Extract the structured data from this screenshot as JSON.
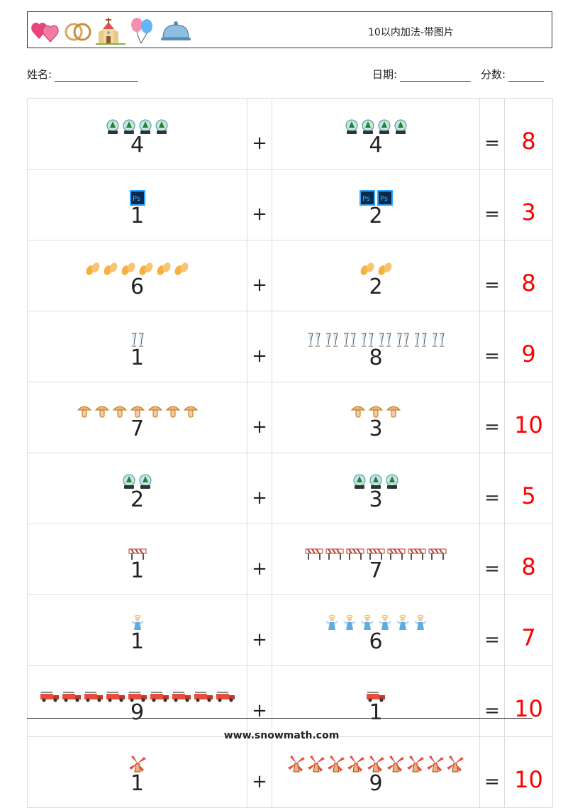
{
  "header": {
    "title": "10以内加法-带图片",
    "icons": [
      "hearts-icon",
      "rings-icon",
      "church-icon",
      "balloons-icon",
      "cloche-icon"
    ]
  },
  "info": {
    "name_label": "姓名:",
    "date_label": "日期:",
    "score_label": "分数:"
  },
  "problems": [
    {
      "a": "4",
      "b": "4",
      "op": "+",
      "eq": "=",
      "ans": "8",
      "icon": "snow-globe-icon"
    },
    {
      "a": "1",
      "b": "2",
      "op": "+",
      "eq": "=",
      "ans": "3",
      "icon": "photoshop-icon"
    },
    {
      "a": "6",
      "b": "2",
      "op": "+",
      "eq": "=",
      "ans": "8",
      "icon": "flip-flops-icon"
    },
    {
      "a": "1",
      "b": "8",
      "op": "+",
      "eq": "=",
      "ans": "9",
      "icon": "champagne-glasses-icon"
    },
    {
      "a": "7",
      "b": "3",
      "op": "+",
      "eq": "=",
      "ans": "10",
      "icon": "mushroom-icon"
    },
    {
      "a": "2",
      "b": "3",
      "op": "+",
      "eq": "=",
      "ans": "5",
      "icon": "snow-globe-icon"
    },
    {
      "a": "1",
      "b": "7",
      "op": "+",
      "eq": "=",
      "ans": "8",
      "icon": "road-barrier-icon"
    },
    {
      "a": "1",
      "b": "6",
      "op": "+",
      "eq": "=",
      "ans": "7",
      "icon": "angel-icon"
    },
    {
      "a": "9",
      "b": "1",
      "op": "+",
      "eq": "=",
      "ans": "10",
      "icon": "fire-truck-icon"
    },
    {
      "a": "1",
      "b": "9",
      "op": "+",
      "eq": "=",
      "ans": "10",
      "icon": "windmill-icon"
    }
  ],
  "footer": {
    "url": "www.snowmath.com"
  }
}
